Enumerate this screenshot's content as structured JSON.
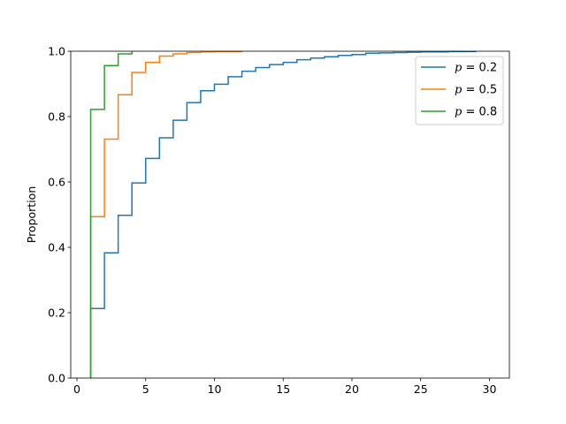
{
  "chart_data": {
    "type": "line",
    "title": "",
    "xlabel": "",
    "ylabel": "Proportion",
    "xlim": [
      -0.45,
      31.45
    ],
    "ylim": [
      0.0,
      1.0
    ],
    "xticks": [
      0,
      5,
      10,
      15,
      20,
      25,
      30
    ],
    "yticks": [
      0.0,
      0.2,
      0.4,
      0.6,
      0.8,
      1.0
    ],
    "grid": false,
    "legend_position": "top-right",
    "series": [
      {
        "name": "p = 0.2",
        "legend_symbol": "p",
        "legend_value": "= 0.2",
        "color": "#1f77b4",
        "x": [
          1,
          2,
          3,
          4,
          5,
          6,
          7,
          8,
          9,
          10,
          11,
          12,
          13,
          14,
          15,
          16,
          17,
          18,
          19,
          20,
          21,
          22,
          23,
          24,
          25,
          26,
          27,
          28,
          29
        ],
        "y": [
          0.213,
          0.383,
          0.498,
          0.597,
          0.672,
          0.735,
          0.789,
          0.843,
          0.879,
          0.899,
          0.922,
          0.939,
          0.95,
          0.959,
          0.966,
          0.974,
          0.979,
          0.983,
          0.987,
          0.99,
          0.994,
          0.995,
          0.996,
          0.997,
          0.998,
          0.998,
          0.999,
          0.999,
          1.0
        ]
      },
      {
        "name": "p = 0.5",
        "legend_symbol": "p",
        "legend_value": "= 0.5",
        "color": "#ff7f0e",
        "x": [
          1,
          2,
          3,
          4,
          5,
          6,
          7,
          8,
          9,
          10,
          11,
          12
        ],
        "y": [
          0.494,
          0.731,
          0.867,
          0.935,
          0.966,
          0.985,
          0.992,
          0.996,
          0.998,
          0.999,
          0.999,
          1.0
        ]
      },
      {
        "name": "p = 0.8",
        "legend_symbol": "p",
        "legend_value": "= 0.8",
        "color": "#2ca02c",
        "x": [
          1,
          2,
          3,
          4
        ],
        "y": [
          0.822,
          0.956,
          0.992,
          1.0
        ]
      }
    ]
  }
}
